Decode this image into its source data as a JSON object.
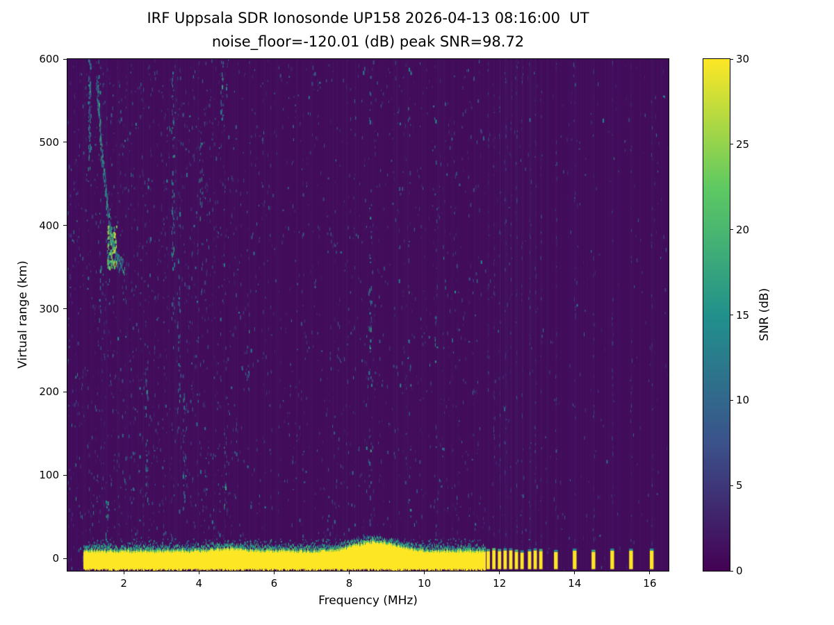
{
  "chart_data": {
    "type": "heatmap",
    "title": "IRF Uppsala SDR Ionosonde UP158 2026-04-13 08:16:00  UT",
    "subtitle": "noise_floor=-120.01 (dB) peak SNR=98.72",
    "xlabel": "Frequency (MHz)",
    "ylabel": "Virtual range (km)",
    "xlim": [
      0.5,
      16.5
    ],
    "ylim": [
      -15,
      600
    ],
    "xticks": [
      2,
      4,
      6,
      8,
      10,
      12,
      14,
      16
    ],
    "yticks": [
      0,
      100,
      200,
      300,
      400,
      500,
      600
    ],
    "grid": false,
    "noise_floor_db": -120.01,
    "peak_snr_db": 98.72,
    "colorbar": {
      "label": "SNR (dB)",
      "min": 0,
      "max": 30,
      "ticks": [
        0,
        5,
        10,
        15,
        20,
        25,
        30
      ],
      "position": "right"
    },
    "colormap": {
      "name": "viridis",
      "stops": [
        {
          "t": 0.0,
          "color": "#440154"
        },
        {
          "t": 0.25,
          "color": "#3b528b"
        },
        {
          "t": 0.5,
          "color": "#21918c"
        },
        {
          "t": 0.75,
          "color": "#5ec962"
        },
        {
          "t": 1.0,
          "color": "#fde725"
        }
      ]
    },
    "features": {
      "background_snr_db": 1,
      "ground_return_band": {
        "freq_mhz": [
          0.92,
          11.62
        ],
        "range_km": [
          -14,
          9
        ],
        "snr_db": 30,
        "bumps": [
          {
            "freq": 8.7,
            "sigma": 0.55,
            "extra_km": 11
          },
          {
            "freq": 4.8,
            "sigma": 0.4,
            "extra_km": 3
          }
        ]
      },
      "ionospheric_echo_trace": {
        "snr_db": 18,
        "points_freq_km": [
          [
            1.28,
            575
          ],
          [
            1.35,
            530
          ],
          [
            1.43,
            480
          ],
          [
            1.52,
            440
          ],
          [
            1.62,
            405
          ],
          [
            1.72,
            375
          ],
          [
            1.85,
            357
          ],
          [
            2.0,
            352
          ]
        ],
        "bright_knee": {
          "freq": [
            1.55,
            1.8
          ],
          "km": [
            350,
            400
          ],
          "snr_db": 28
        }
      },
      "rfi_bursts": {
        "range_km": [
          -13,
          7
        ],
        "snr_db": 30,
        "freqs_mhz": [
          11.7,
          11.85,
          12.0,
          12.15,
          12.3,
          12.45,
          12.6,
          12.8,
          12.95,
          13.1,
          13.5,
          14.0,
          14.5,
          15.0,
          15.5,
          16.05
        ]
      },
      "noise_streaks": [
        {
          "freq": 1.08,
          "km": [
            470,
            600
          ],
          "count": 70
        },
        {
          "freq": 1.35,
          "km": [
            250,
            600
          ],
          "count": 25
        },
        {
          "freq": 1.55,
          "km": [
            15,
            70
          ],
          "count": 18
        },
        {
          "freq": 2.6,
          "km": [
            60,
            230
          ],
          "count": 25
        },
        {
          "freq": 3.3,
          "km": [
            350,
            585
          ],
          "count": 50
        },
        {
          "freq": 3.45,
          "km": [
            150,
            420
          ],
          "count": 30
        },
        {
          "freq": 3.6,
          "km": [
            60,
            200
          ],
          "count": 20
        },
        {
          "freq": 4.05,
          "km": [
            400,
            500
          ],
          "count": 18
        },
        {
          "freq": 4.6,
          "km": [
            520,
            600
          ],
          "count": 22
        },
        {
          "freq": 4.7,
          "km": [
            60,
            160
          ],
          "count": 15
        },
        {
          "freq": 5.3,
          "km": [
            200,
            300
          ],
          "count": 12
        },
        {
          "freq": 8.55,
          "km": [
            0,
            600
          ],
          "count": 45
        },
        {
          "freq": 9.6,
          "km": [
            0,
            600
          ],
          "count": 25
        },
        {
          "freq": 10.3,
          "km": [
            0,
            600
          ],
          "count": 20
        }
      ],
      "speckle": {
        "count": 5200,
        "snr_range": [
          3,
          17
        ]
      },
      "second_echo_dots": {
        "freq_mhz": [
          1.0,
          11.5
        ],
        "km": [
          12,
          24
        ],
        "count": 350,
        "snr_range": [
          8,
          18
        ]
      }
    }
  }
}
